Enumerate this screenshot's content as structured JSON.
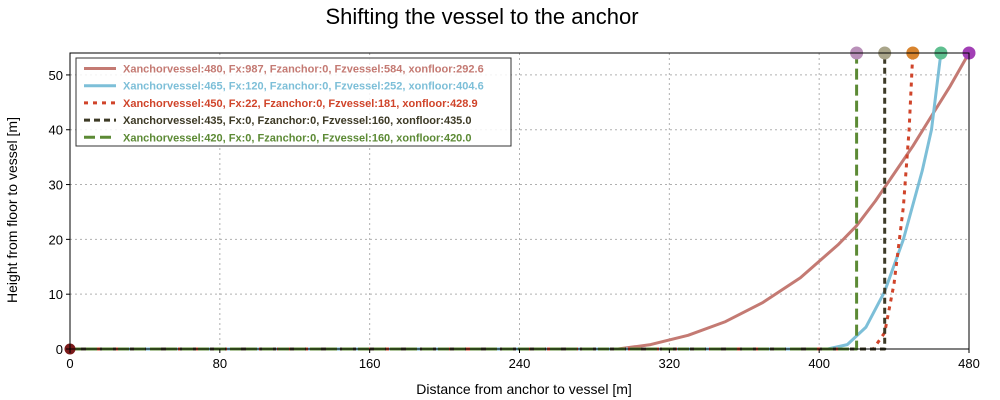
{
  "chart_data": {
    "type": "line",
    "title": "Shifting the vessel to the anchor",
    "xlabel": "Distance from anchor to vessel [m]",
    "ylabel": "Height from floor to vessel [m]",
    "xlim": [
      0,
      480
    ],
    "ylim": [
      0,
      54
    ],
    "xticks": [
      0,
      80,
      160,
      240,
      320,
      400,
      480
    ],
    "yticks": [
      0,
      10,
      20,
      30,
      40,
      50
    ],
    "grid": true,
    "legend_position": "upper-left",
    "anchor_marker": {
      "x": 0,
      "y": 0,
      "color": "#7a1a1a"
    },
    "series": [
      {
        "name": "Xanchorvessel:480, Fx:987, Fzanchor:0, Fzvessel:584, xonfloor:292.6",
        "color": "#c47a73",
        "dash": "solid",
        "top_marker": {
          "x": 480,
          "y": 54,
          "color": "#a23fb5"
        },
        "points": [
          [
            0,
            0
          ],
          [
            292.6,
            0
          ],
          [
            310,
            0.8
          ],
          [
            330,
            2.5
          ],
          [
            350,
            5
          ],
          [
            370,
            8.5
          ],
          [
            390,
            13
          ],
          [
            410,
            19
          ],
          [
            420,
            22.5
          ],
          [
            430,
            27
          ],
          [
            440,
            32
          ],
          [
            450,
            37
          ],
          [
            460,
            42.5
          ],
          [
            470,
            48
          ],
          [
            480,
            54
          ]
        ]
      },
      {
        "name": "Xanchorvessel:465, Fx:120, Fzanchor:0, Fzvessel:252, xonfloor:404.6",
        "color": "#7dbfd8",
        "dash": "solid",
        "top_marker": {
          "x": 465,
          "y": 54,
          "color": "#5fbf8f"
        },
        "points": [
          [
            0,
            0
          ],
          [
            404.6,
            0
          ],
          [
            415,
            0.8
          ],
          [
            425,
            4
          ],
          [
            435,
            10.5
          ],
          [
            445,
            20
          ],
          [
            455,
            32.5
          ],
          [
            460,
            40
          ],
          [
            465,
            54
          ]
        ]
      },
      {
        "name": "Xanchorvessel:450, Fx:22, Fzanchor:0, Fzvessel:181, xonfloor:428.9",
        "color": "#d0442a",
        "dash": "dotted",
        "top_marker": {
          "x": 450,
          "y": 54,
          "color": "#d8842e"
        },
        "points": [
          [
            0,
            0
          ],
          [
            428.9,
            0
          ],
          [
            435,
            3
          ],
          [
            440,
            12
          ],
          [
            445,
            26
          ],
          [
            448,
            40
          ],
          [
            450,
            54
          ]
        ]
      },
      {
        "name": "Xanchorvessel:435, Fx:0, Fzanchor:0, Fzvessel:160, xonfloor:435.0",
        "color": "#3d3a26",
        "dash": "dashed",
        "top_marker": {
          "x": 435,
          "y": 54,
          "color": "#a9a58a"
        },
        "points": [
          [
            0,
            0
          ],
          [
            435,
            0
          ],
          [
            435,
            54
          ]
        ]
      },
      {
        "name": "Xanchorvessel:420, Fx:0, Fzanchor:0, Fzvessel:160, xonfloor:420.0",
        "color": "#5c8a35",
        "dash": "longdash",
        "top_marker": {
          "x": 420,
          "y": 54,
          "color": "#b990b9"
        },
        "points": [
          [
            0,
            0
          ],
          [
            420,
            0
          ],
          [
            420,
            54
          ]
        ]
      }
    ]
  }
}
